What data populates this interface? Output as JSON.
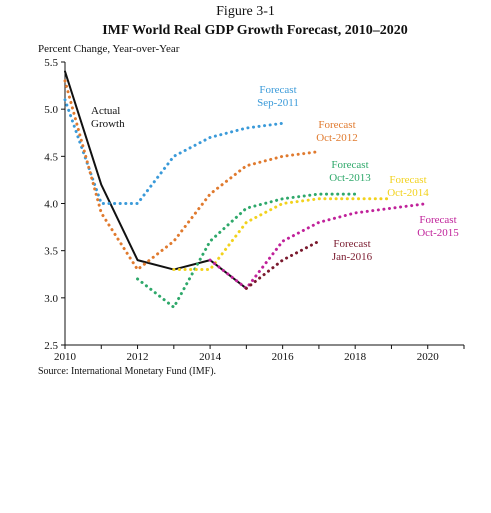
{
  "chart_data": {
    "type": "line",
    "figure_label": "Figure 3-1",
    "title": "IMF World Real GDP Growth Forecast, 2010–2020",
    "ylabel": "Percent Change, Year-over-Year",
    "xlabel": "",
    "source": "Source: International Monetary Fund (IMF).",
    "xlim": [
      2010,
      2021
    ],
    "ylim": [
      2.5,
      5.5
    ],
    "x_ticks": [
      2010,
      2012,
      2014,
      2016,
      2018,
      2020
    ],
    "y_ticks": [
      "2.5",
      "3.0",
      "3.5",
      "4.0",
      "4.5",
      "5.0",
      "5.5"
    ],
    "grid": false,
    "series": [
      {
        "name": "Actual Growth",
        "label_lines": [
          "Actual",
          "Growth"
        ],
        "color": "#111111",
        "style": "solid",
        "points": [
          [
            2010,
            5.4
          ],
          [
            2011,
            4.2
          ],
          [
            2012,
            3.4
          ],
          [
            2013,
            3.3
          ],
          [
            2014,
            3.4
          ],
          [
            2015,
            3.1
          ]
        ]
      },
      {
        "name": "Forecast Sep-2011",
        "label_lines": [
          "Forecast",
          "Sep-2011"
        ],
        "color": "#3a9ad9",
        "style": "dotted",
        "points": [
          [
            2010,
            5.1
          ],
          [
            2011,
            4.0
          ],
          [
            2012,
            4.0
          ],
          [
            2013,
            4.5
          ],
          [
            2014,
            4.7
          ],
          [
            2015,
            4.8
          ],
          [
            2016,
            4.85
          ]
        ]
      },
      {
        "name": "Forecast Oct-2012",
        "label_lines": [
          "Forecast",
          "Oct-2012"
        ],
        "color": "#e07a2e",
        "style": "dotted",
        "points": [
          [
            2010,
            5.3
          ],
          [
            2011,
            3.9
          ],
          [
            2012,
            3.3
          ],
          [
            2013,
            3.6
          ],
          [
            2014,
            4.1
          ],
          [
            2015,
            4.4
          ],
          [
            2016,
            4.5
          ],
          [
            2017,
            4.55
          ]
        ]
      },
      {
        "name": "Forecast Oct-2013",
        "label_lines": [
          "Forecast",
          "Oct-2013"
        ],
        "color": "#2ea86a",
        "style": "dotted",
        "points": [
          [
            2012,
            3.2
          ],
          [
            2013,
            2.9
          ],
          [
            2014,
            3.6
          ],
          [
            2015,
            3.95
          ],
          [
            2016,
            4.05
          ],
          [
            2017,
            4.1
          ],
          [
            2018,
            4.1
          ]
        ]
      },
      {
        "name": "Forecast Oct-2014",
        "label_lines": [
          "Forecast",
          "Oct-2014"
        ],
        "color": "#f2d21d",
        "style": "dotted",
        "points": [
          [
            2013,
            3.3
          ],
          [
            2014,
            3.3
          ],
          [
            2015,
            3.8
          ],
          [
            2016,
            4.0
          ],
          [
            2017,
            4.05
          ],
          [
            2018,
            4.05
          ],
          [
            2019,
            4.05
          ]
        ]
      },
      {
        "name": "Forecast Oct-2015",
        "label_lines": [
          "Forecast",
          "Oct-2015"
        ],
        "color": "#c0229a",
        "style": "dotted",
        "points": [
          [
            2014,
            3.4
          ],
          [
            2015,
            3.1
          ],
          [
            2016,
            3.6
          ],
          [
            2017,
            3.8
          ],
          [
            2018,
            3.9
          ],
          [
            2019,
            3.95
          ],
          [
            2020,
            4.0
          ]
        ]
      },
      {
        "name": "Forecast Jan-2016",
        "label_lines": [
          "Forecast",
          "Jan-2016"
        ],
        "color": "#7a1a2e",
        "style": "dotted",
        "points": [
          [
            2015,
            3.1
          ],
          [
            2016,
            3.4
          ],
          [
            2017,
            3.6
          ]
        ]
      }
    ]
  }
}
